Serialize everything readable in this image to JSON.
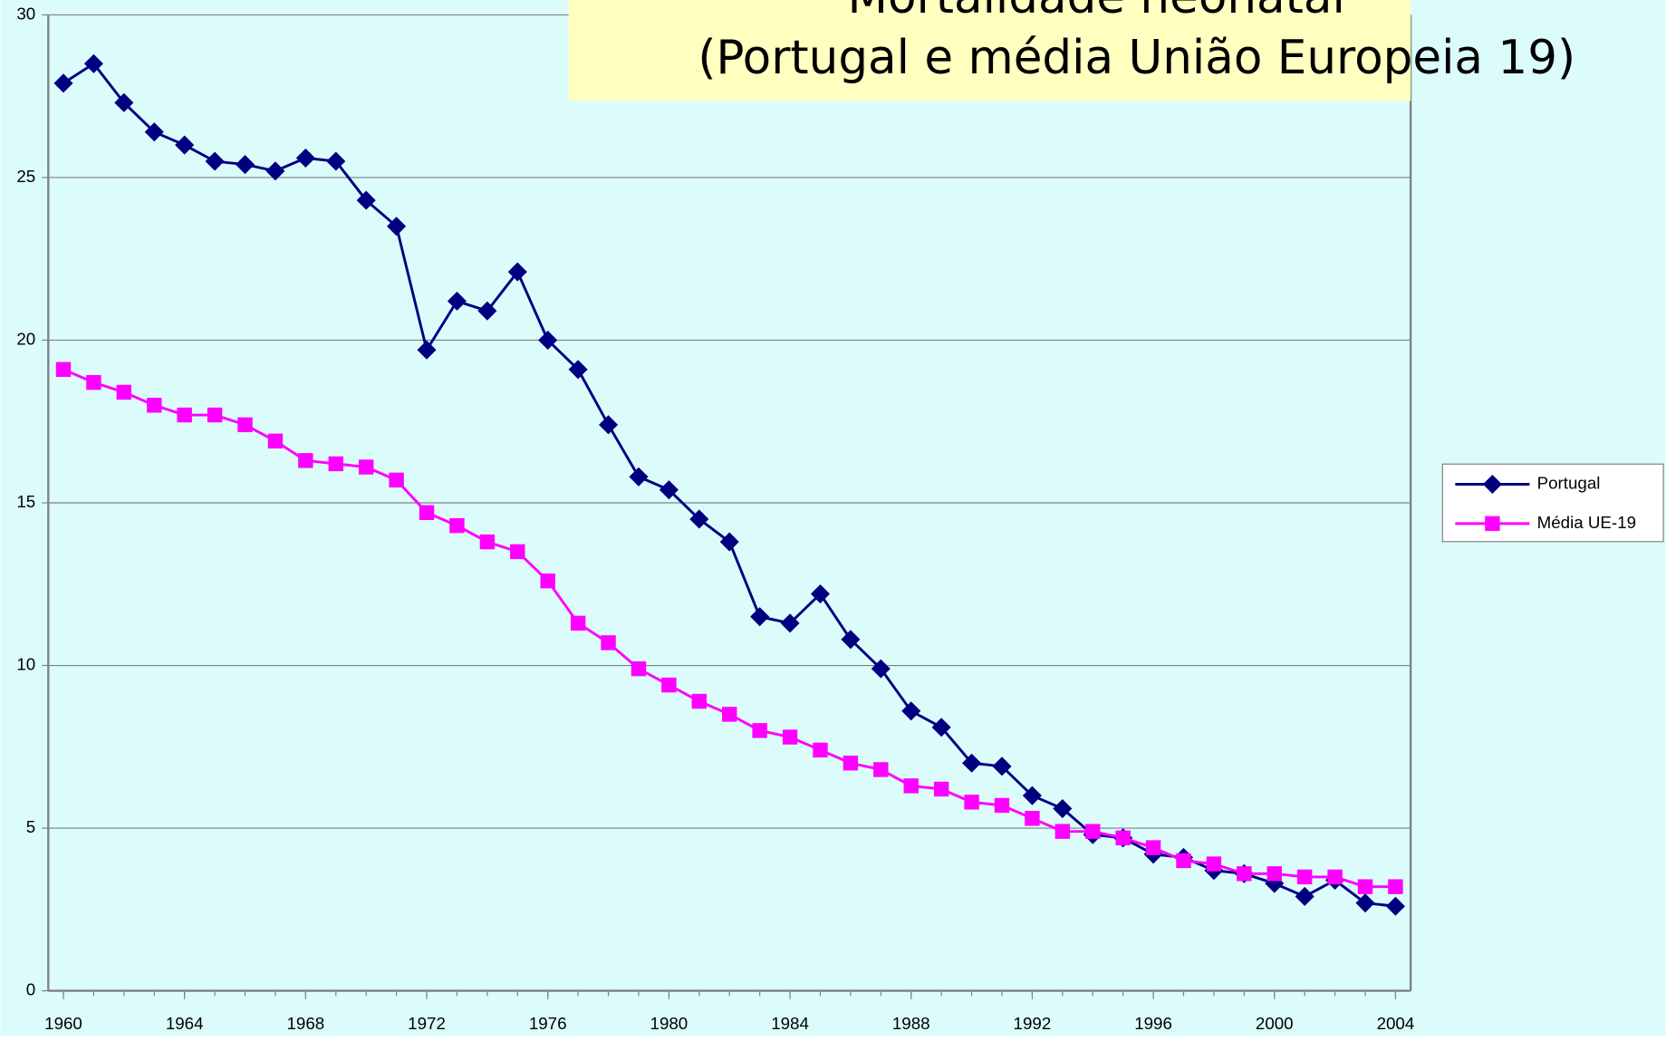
{
  "chart_data": {
    "type": "line",
    "title": "Mortalidade neonatal",
    "subtitle": "(Portugal e média União Europeia 19)",
    "x": [
      1960,
      1961,
      1962,
      1963,
      1964,
      1965,
      1966,
      1967,
      1968,
      1969,
      1970,
      1971,
      1972,
      1973,
      1974,
      1975,
      1976,
      1977,
      1978,
      1979,
      1980,
      1981,
      1982,
      1983,
      1984,
      1985,
      1986,
      1987,
      1988,
      1989,
      1990,
      1991,
      1992,
      1993,
      1994,
      1995,
      1996,
      1997,
      1998,
      1999,
      2000,
      2001,
      2002,
      2003,
      2004
    ],
    "series": [
      {
        "name": "Portugal",
        "color": "#000080",
        "marker": "diamond",
        "values": [
          27.9,
          28.5,
          27.3,
          26.4,
          26.0,
          25.5,
          25.4,
          25.2,
          25.6,
          25.5,
          24.3,
          23.5,
          19.7,
          21.2,
          20.9,
          22.1,
          20.0,
          19.1,
          17.4,
          15.8,
          15.4,
          14.5,
          13.8,
          11.5,
          11.3,
          12.2,
          10.8,
          9.9,
          8.6,
          8.1,
          7.0,
          6.9,
          6.0,
          5.6,
          4.8,
          4.7,
          4.2,
          4.1,
          3.7,
          3.6,
          3.3,
          2.9,
          3.4,
          2.7,
          2.6
        ]
      },
      {
        "name": "Média UE-19",
        "color": "#ff00ff",
        "marker": "square",
        "values": [
          19.1,
          18.7,
          18.4,
          18.0,
          17.7,
          17.7,
          17.4,
          16.9,
          16.3,
          16.2,
          16.1,
          15.7,
          14.7,
          14.3,
          13.8,
          13.5,
          12.6,
          11.3,
          10.7,
          9.9,
          9.4,
          8.9,
          8.5,
          8.0,
          7.8,
          7.4,
          7.0,
          6.8,
          6.3,
          6.2,
          5.8,
          5.7,
          5.3,
          4.9,
          4.9,
          4.7,
          4.4,
          4.0,
          3.9,
          3.6,
          3.6,
          3.5,
          3.5,
          3.2,
          3.2
        ]
      }
    ],
    "xlim": [
      1959.5,
      2004.5
    ],
    "xticks": [
      1960,
      1964,
      1968,
      1972,
      1976,
      1980,
      1984,
      1988,
      1992,
      1996,
      2000,
      2004
    ],
    "ylim": [
      0,
      30
    ],
    "yticks": [
      0,
      5,
      10,
      15,
      20,
      25,
      30
    ],
    "grid": true,
    "legend": "right"
  }
}
